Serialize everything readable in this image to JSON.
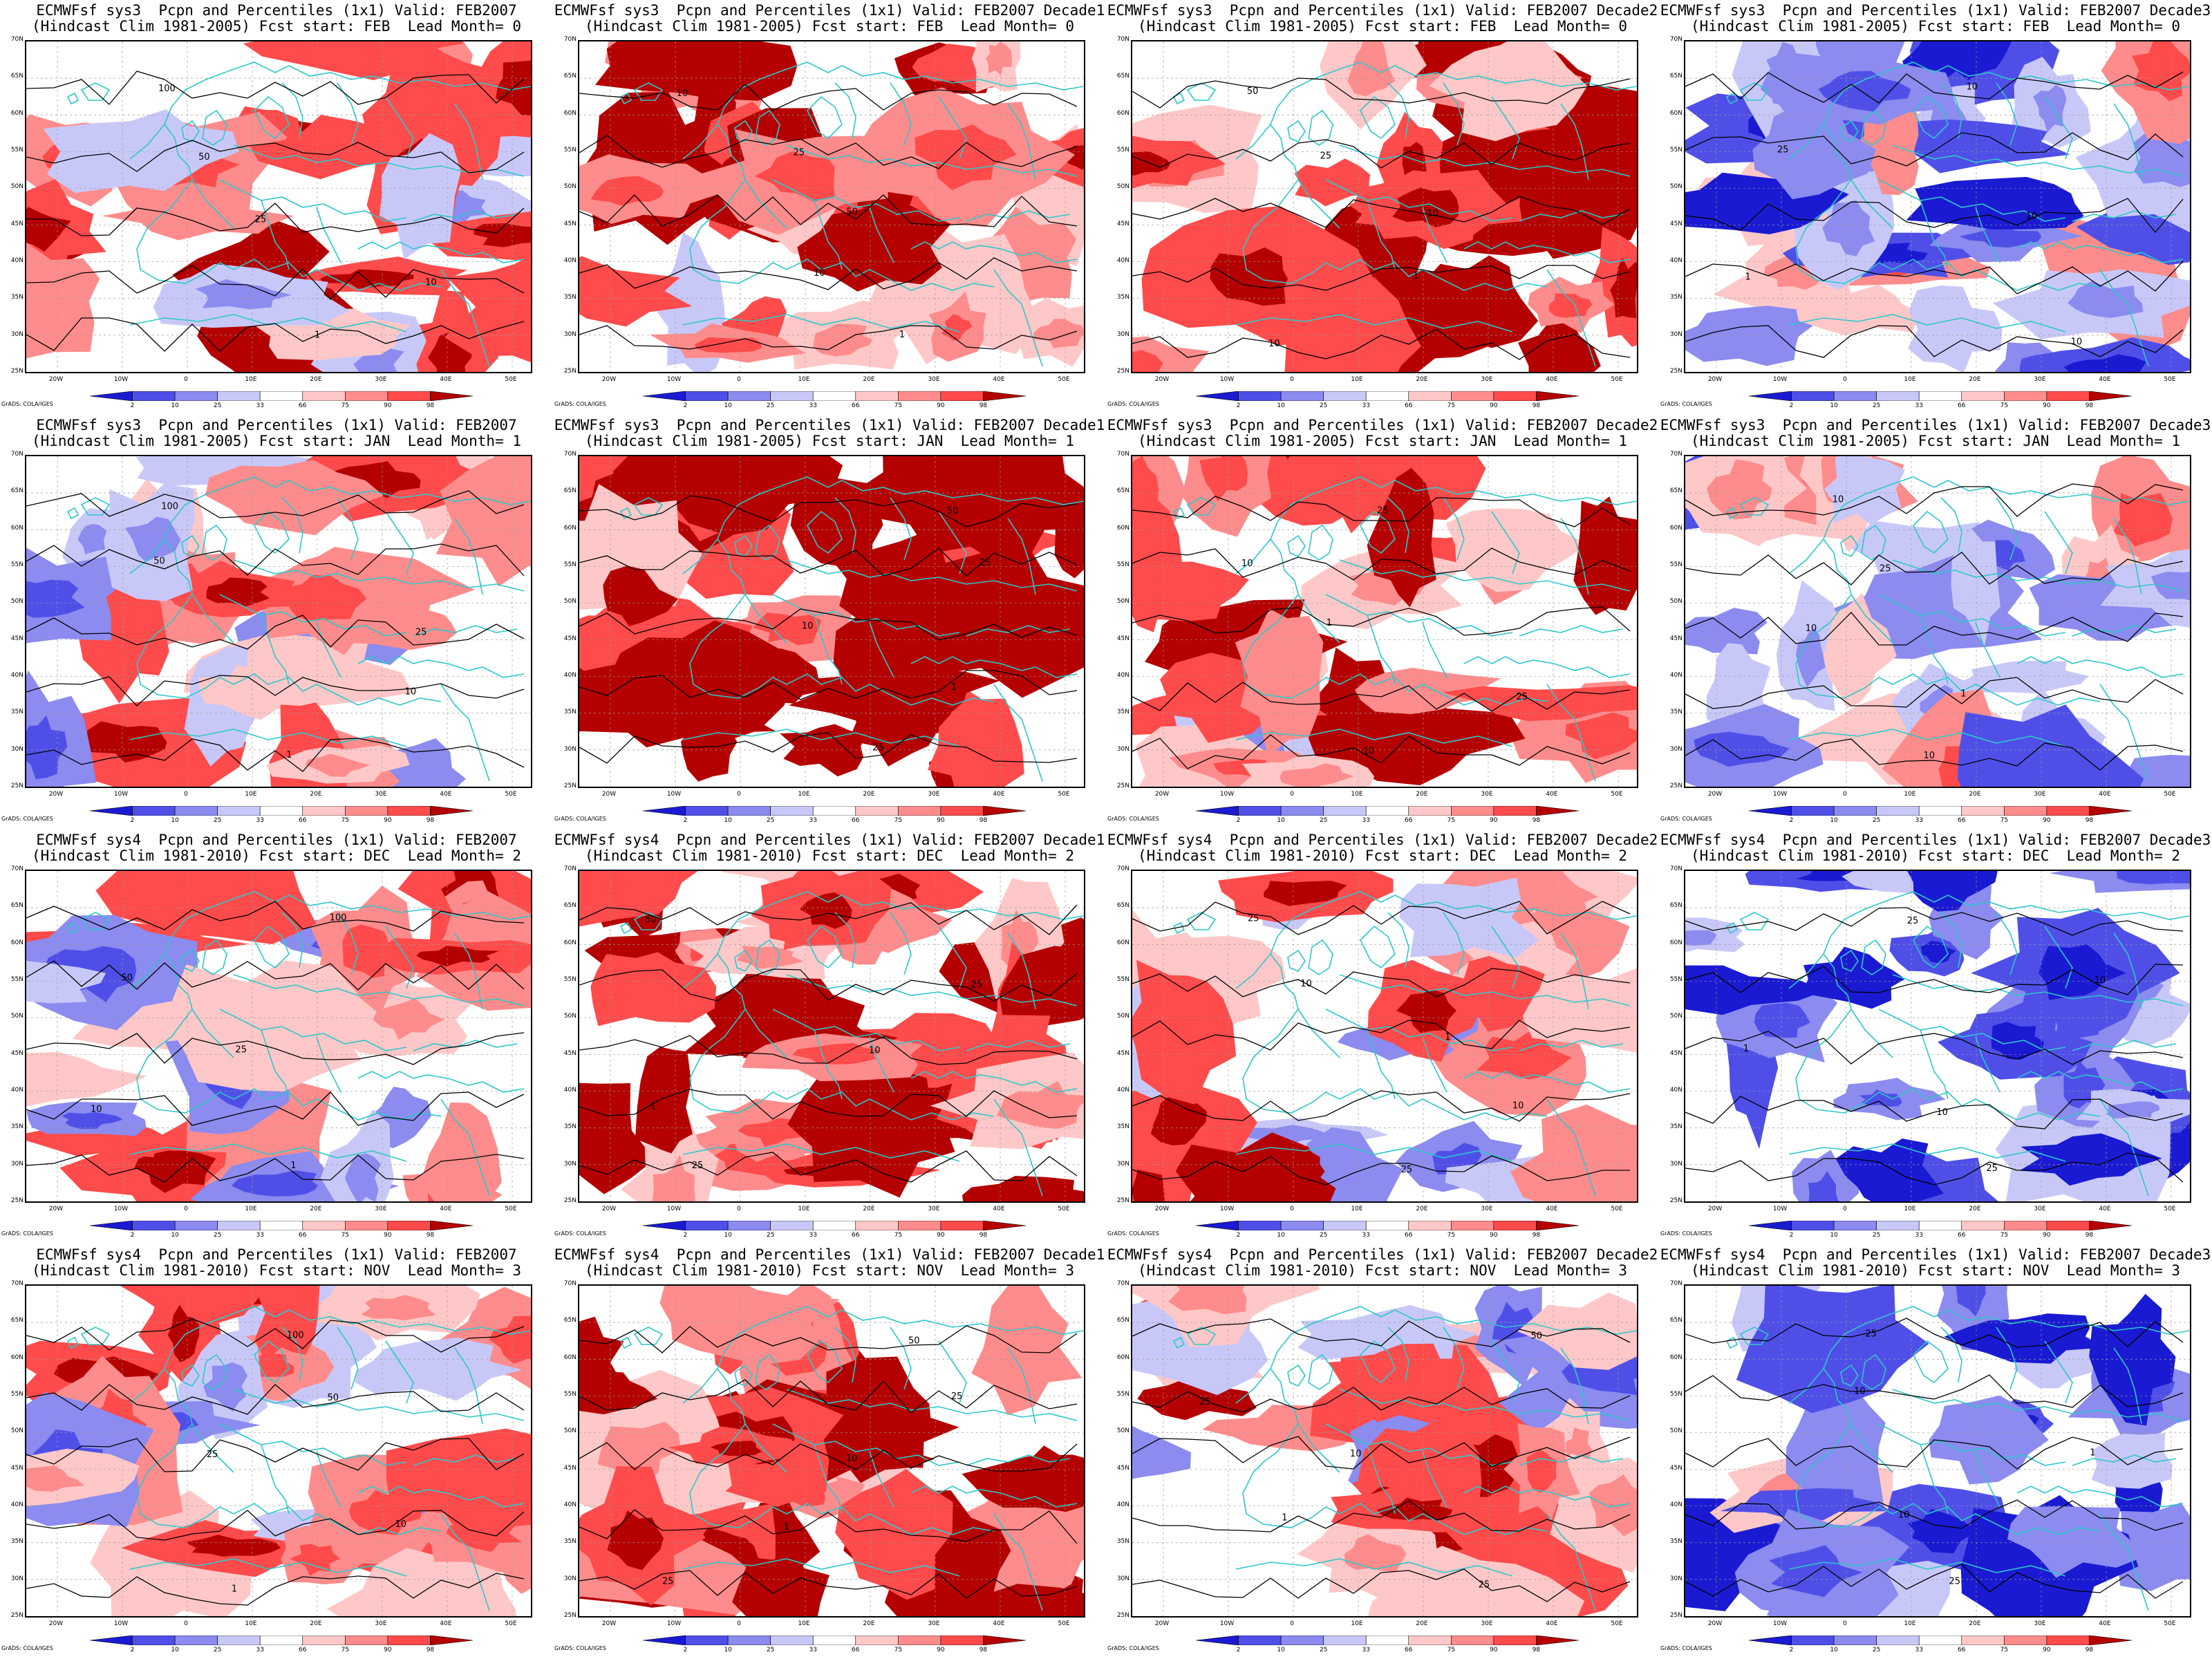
{
  "colors": {
    "coastline": "#2ec7c9",
    "contour": "#000000",
    "bins": [
      "#1a1ad2",
      "#4f4fe8",
      "#8b8bf0",
      "#c8c8f8",
      "#ffffff",
      "#ffc8c8",
      "#ff8c8c",
      "#ff4b4b",
      "#b40000"
    ]
  },
  "y_ticks": [
    "70N",
    "65N",
    "60N",
    "55N",
    "50N",
    "45N",
    "40N",
    "35N",
    "30N",
    "25N"
  ],
  "x_ticks": [
    "20W",
    "10W",
    "0",
    "10E",
    "20E",
    "30E",
    "40E",
    "50E"
  ],
  "colorbar_labels": [
    "2",
    "10",
    "25",
    "33",
    "66",
    "75",
    "90",
    "98"
  ],
  "credit": "GrADS: COLA/IGES",
  "panels": [
    {
      "title1": "ECMWFsf sys3  Pcpn and Percentiles (1x1) Valid: FEB2007",
      "title2": "(Hindcast Clim 1981-2005) Fcst start: FEB  Lead Month= 0",
      "bias": 0.45,
      "seed": 11,
      "contours": [
        "100",
        "50",
        "25",
        "10",
        "1"
      ]
    },
    {
      "title1": "ECMWFsf sys3  Pcpn and Percentiles (1x1) Valid: FEB2007 Decade1",
      "title2": "(Hindcast Clim 1981-2005) Fcst start: FEB  Lead Month= 0",
      "bias": 0.5,
      "seed": 12,
      "contours": [
        "10",
        "25",
        "50",
        "10",
        "1"
      ]
    },
    {
      "title1": "ECMWFsf sys3  Pcpn and Percentiles (1x1) Valid: FEB2007 Decade2",
      "title2": "(Hindcast Clim 1981-2005) Fcst start: FEB  Lead Month= 0",
      "bias": 0.85,
      "seed": 13,
      "contours": [
        "50",
        "25",
        "10",
        "1",
        "10"
      ]
    },
    {
      "title1": "ECMWFsf sys3  Pcpn and Percentiles (1x1) Valid: FEB2007 Decade3",
      "title2": "(Hindcast Clim 1981-2005) Fcst start: FEB  Lead Month= 0",
      "bias": -0.35,
      "seed": 14,
      "contours": [
        "10",
        "25",
        "10",
        "1",
        "10"
      ]
    },
    {
      "title1": "ECMWFsf sys3  Pcpn and Percentiles (1x1) Valid: FEB2007",
      "title2": "(Hindcast Clim 1981-2005) Fcst start: JAN  Lead Month= 1",
      "bias": 0.3,
      "seed": 21,
      "contours": [
        "100",
        "50",
        "25",
        "10",
        "1"
      ]
    },
    {
      "title1": "ECMWFsf sys3  Pcpn and Percentiles (1x1) Valid: FEB2007 Decade1",
      "title2": "(Hindcast Clim 1981-2005) Fcst start: JAN  Lead Month= 1",
      "bias": 1.1,
      "seed": 22,
      "contours": [
        "50",
        "25",
        "10",
        "1",
        "25"
      ]
    },
    {
      "title1": "ECMWFsf sys3  Pcpn and Percentiles (1x1) Valid: FEB2007 Decade2",
      "title2": "(Hindcast Clim 1981-2005) Fcst start: JAN  Lead Month= 1",
      "bias": 0.55,
      "seed": 23,
      "contours": [
        "25",
        "10",
        "1",
        "25",
        "10"
      ]
    },
    {
      "title1": "ECMWFsf sys3  Pcpn and Percentiles (1x1) Valid: FEB2007 Decade3",
      "title2": "(Hindcast Clim 1981-2005) Fcst start: JAN  Lead Month= 1",
      "bias": -0.1,
      "seed": 24,
      "contours": [
        "10",
        "25",
        "10",
        "1",
        "10"
      ]
    },
    {
      "title1": "ECMWFsf sys4  Pcpn and Percentiles (1x1) Valid: FEB2007",
      "title2": "(Hindcast Clim 1981-2010) Fcst start: DEC  Lead Month= 2",
      "bias": 0.2,
      "seed": 31,
      "contours": [
        "100",
        "50",
        "25",
        "10",
        "1"
      ]
    },
    {
      "title1": "ECMWFsf sys4  Pcpn and Percentiles (1x1) Valid: FEB2007 Decade1",
      "title2": "(Hindcast Clim 1981-2010) Fcst start: DEC  Lead Month= 2",
      "bias": 1.0,
      "seed": 32,
      "contours": [
        "50",
        "25",
        "10",
        "1",
        "25"
      ]
    },
    {
      "title1": "ECMWFsf sys4  Pcpn and Percentiles (1x1) Valid: FEB2007 Decade2",
      "title2": "(Hindcast Clim 1981-2010) Fcst start: DEC  Lead Month= 2",
      "bias": 0.35,
      "seed": 33,
      "contours": [
        "25",
        "10",
        "1",
        "10",
        "25"
      ]
    },
    {
      "title1": "ECMWFsf sys4  Pcpn and Percentiles (1x1) Valid: FEB2007 Decade3",
      "title2": "(Hindcast Clim 1981-2010) Fcst start: DEC  Lead Month= 2",
      "bias": -0.5,
      "seed": 34,
      "contours": [
        "25",
        "10",
        "1",
        "10",
        "25"
      ]
    },
    {
      "title1": "ECMWFsf sys4  Pcpn and Percentiles (1x1) Valid: FEB2007",
      "title2": "(Hindcast Clim 1981-2010) Fcst start: NOV  Lead Month= 3",
      "bias": 0.2,
      "seed": 41,
      "contours": [
        "100",
        "50",
        "25",
        "10",
        "1"
      ]
    },
    {
      "title1": "ECMWFsf sys4  Pcpn and Percentiles (1x1) Valid: FEB2007 Decade1",
      "title2": "(Hindcast Clim 1981-2010) Fcst start: NOV  Lead Month= 3",
      "bias": 0.9,
      "seed": 42,
      "contours": [
        "50",
        "25",
        "10",
        "1",
        "25"
      ]
    },
    {
      "title1": "ECMWFsf sys4  Pcpn and Percentiles (1x1) Valid: FEB2007 Decade2",
      "title2": "(Hindcast Clim 1981-2010) Fcst start: NOV  Lead Month= 3",
      "bias": 0.35,
      "seed": 43,
      "contours": [
        "50",
        "25",
        "10",
        "1",
        "25"
      ]
    },
    {
      "title1": "ECMWFsf sys4  Pcpn and Percentiles (1x1) Valid: FEB2007 Decade3",
      "title2": "(Hindcast Clim 1981-2010) Fcst start: NOV  Lead Month= 3",
      "bias": -0.6,
      "seed": 44,
      "contours": [
        "25",
        "10",
        "1",
        "10",
        "25"
      ]
    }
  ]
}
